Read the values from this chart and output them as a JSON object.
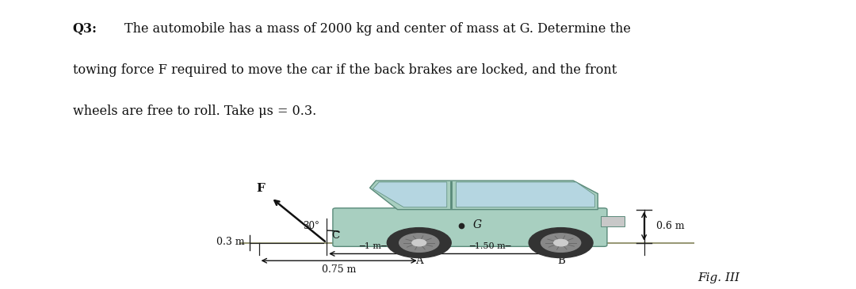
{
  "page_bg": "#ffffff",
  "text_color": "#111111",
  "car_color": "#a8cfc0",
  "car_edge": "#5a8a7a",
  "wheel_dark": "#333333",
  "wheel_mid": "#888888",
  "wheel_light": "#cccccc",
  "window_color": "#b8d8e8",
  "dim_color": "#222222",
  "arrow_color": "#111111",
  "ground_color": "#999977",
  "figsize": [
    10.8,
    3.65
  ],
  "dpi": 100,
  "q3_label": "Q3:",
  "line1": "The automobile has a mass of 2000 kg and center of mass at G. Determine the",
  "line2": "towing force F required to move the car if the back brakes are locked, and the front",
  "line3": "wheels are free to roll. Take μs = 0.3.",
  "fig_label": "Fig. III"
}
